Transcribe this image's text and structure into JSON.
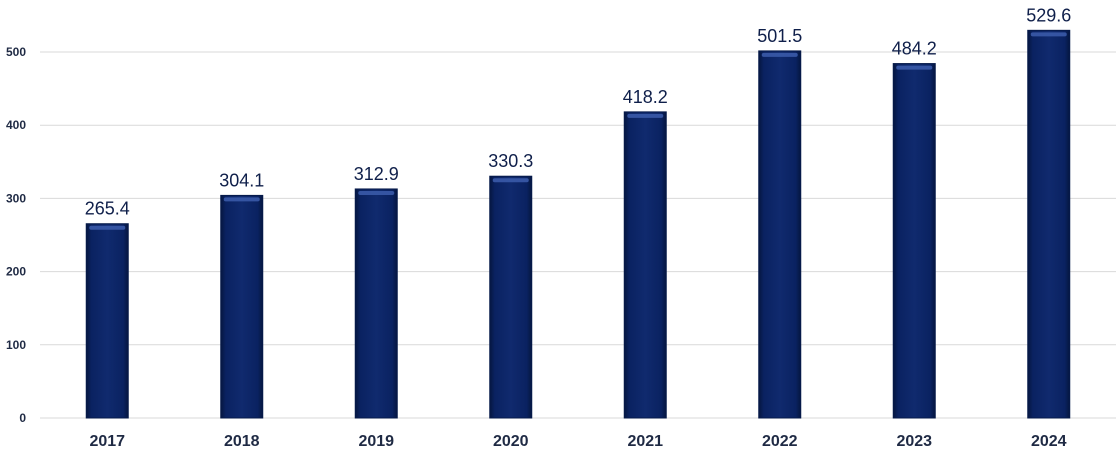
{
  "chart_data": {
    "type": "bar",
    "categories": [
      "2017",
      "2018",
      "2019",
      "2020",
      "2021",
      "2022",
      "2023",
      "2024"
    ],
    "values": [
      265.4,
      304.1,
      312.9,
      330.3,
      418.2,
      501.5,
      484.2,
      529.6
    ],
    "data_labels": [
      "265.4",
      "304.1",
      "312.9",
      "330.3",
      "418.2",
      "501.5",
      "484.2",
      "529.6"
    ],
    "y_ticks": [
      0,
      100,
      200,
      300,
      400,
      500
    ],
    "ylim": [
      0,
      540
    ],
    "grid": true,
    "legend": "none",
    "bar_color": "#0a2261",
    "bar_highlight": "#3a5aa8"
  }
}
